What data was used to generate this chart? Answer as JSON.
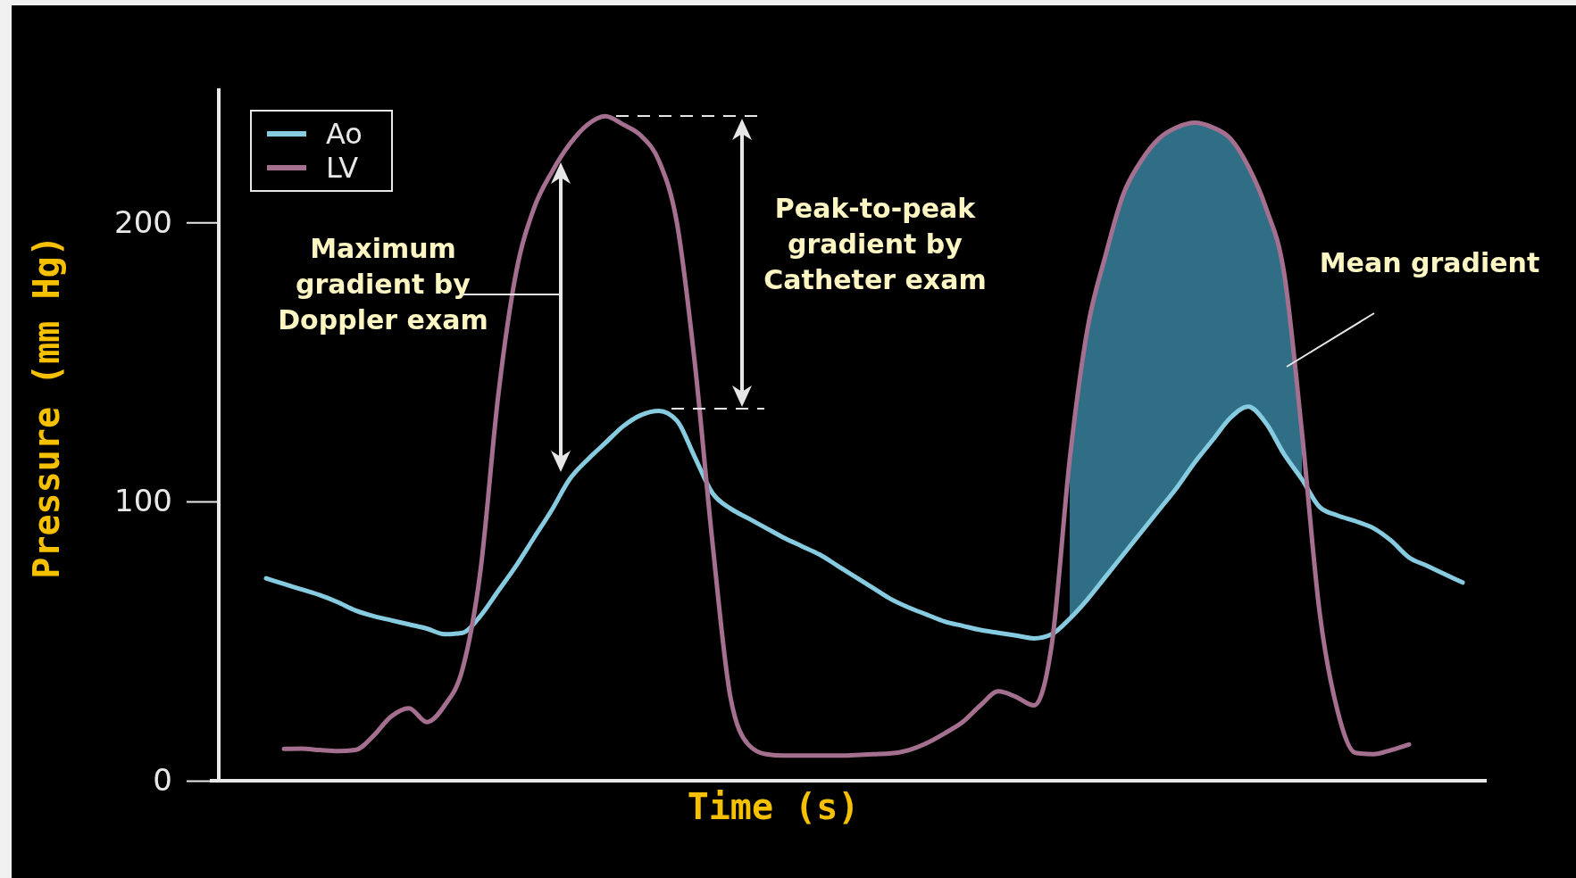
{
  "chart_data": {
    "type": "line",
    "xlabel": "Time (s)",
    "ylabel": "Pressure (mm Hg)",
    "categories": [
      null,
      null,
      null,
      null,
      null,
      null,
      null,
      null,
      null,
      null,
      null,
      null,
      null,
      null,
      null,
      null,
      null,
      null,
      null,
      null,
      null,
      null,
      null,
      null,
      null,
      null,
      null,
      null,
      null,
      null,
      null,
      null,
      null,
      null,
      null,
      null,
      null,
      null,
      null,
      null,
      null,
      null,
      null,
      null,
      null,
      null,
      null,
      null,
      null,
      null,
      null,
      null,
      null,
      null,
      null,
      null,
      null,
      null,
      null,
      null,
      null,
      null,
      null,
      null,
      null,
      null,
      null,
      null
    ],
    "series": [
      {
        "name": "Ao",
        "color": "#86cbe0",
        "values": [
          72.5,
          70.5,
          68.5,
          66.5,
          64,
          61,
          59,
          57.5,
          56,
          54.5,
          52.5,
          53,
          59,
          68,
          77,
          87,
          97,
          108,
          115,
          121,
          127,
          131,
          132.5,
          129,
          116,
          103,
          97.5,
          94,
          90.5,
          87,
          84,
          81,
          77,
          73,
          69,
          65,
          62,
          59.5,
          57,
          55.5,
          54,
          53,
          52,
          51,
          52.5,
          58,
          65,
          73,
          81,
          89,
          97,
          105,
          114,
          122,
          130,
          134,
          128,
          117,
          108,
          98,
          95,
          93,
          90.5,
          86,
          80,
          77,
          74,
          71
        ]
      },
      {
        "name": "LV",
        "color": "#a5708f",
        "values": [
          null,
          11.4,
          11.5,
          11,
          10.6,
          11,
          16,
          23,
          26,
          21,
          27,
          40,
          75,
          138,
          182,
          205,
          218,
          228,
          235,
          238,
          235,
          231,
          222,
          200,
          150,
          85,
          30,
          13,
          9.5,
          9,
          9,
          9,
          9,
          9.2,
          9.5,
          9.8,
          11,
          13.5,
          17,
          21,
          27,
          32,
          30,
          27,
          49,
          115,
          162,
          188,
          210,
          222,
          230,
          234,
          235.7,
          234,
          230,
          220,
          205,
          182,
          125,
          60,
          25,
          10,
          9.5,
          11,
          13,
          null,
          null,
          null
        ],
        "lower": [
          null,
          null,
          null,
          null,
          null,
          null,
          null,
          null,
          null,
          null,
          null,
          null,
          null,
          null,
          null,
          null,
          null,
          null,
          null,
          null,
          null,
          null,
          null,
          null,
          null,
          null,
          null,
          null,
          null,
          null,
          null,
          null,
          null,
          null,
          null,
          null,
          null,
          null,
          null,
          null,
          null,
          null,
          null,
          null,
          null,
          58,
          65,
          73,
          81,
          89,
          97,
          105,
          114,
          122,
          130,
          134,
          128,
          117,
          108,
          null,
          null,
          null,
          null,
          null,
          null,
          null,
          null,
          null
        ],
        "upper": [
          null,
          null,
          null,
          null,
          null,
          null,
          null,
          null,
          null,
          null,
          null,
          null,
          null,
          null,
          null,
          null,
          null,
          null,
          null,
          null,
          null,
          null,
          null,
          null,
          null,
          null,
          null,
          null,
          null,
          null,
          null,
          null,
          null,
          null,
          null,
          null,
          null,
          null,
          null,
          null,
          null,
          null,
          null,
          null,
          null,
          115,
          162,
          188,
          210,
          222,
          230,
          234,
          235.7,
          234,
          230,
          220,
          205,
          182,
          125,
          null,
          null,
          null,
          null,
          null,
          null,
          null,
          null,
          null
        ]
      }
    ],
    "ylim": [
      0,
      248
    ],
    "yticks": [
      0,
      100,
      200
    ],
    "legend": "top left",
    "marker": "none",
    "line_style": "solid",
    "grid": false,
    "annotations": [
      "Maximum gradient by Doppler exam",
      "Peak-to-peak gradient by Catheter exam",
      "Mean gradient"
    ]
  }
}
